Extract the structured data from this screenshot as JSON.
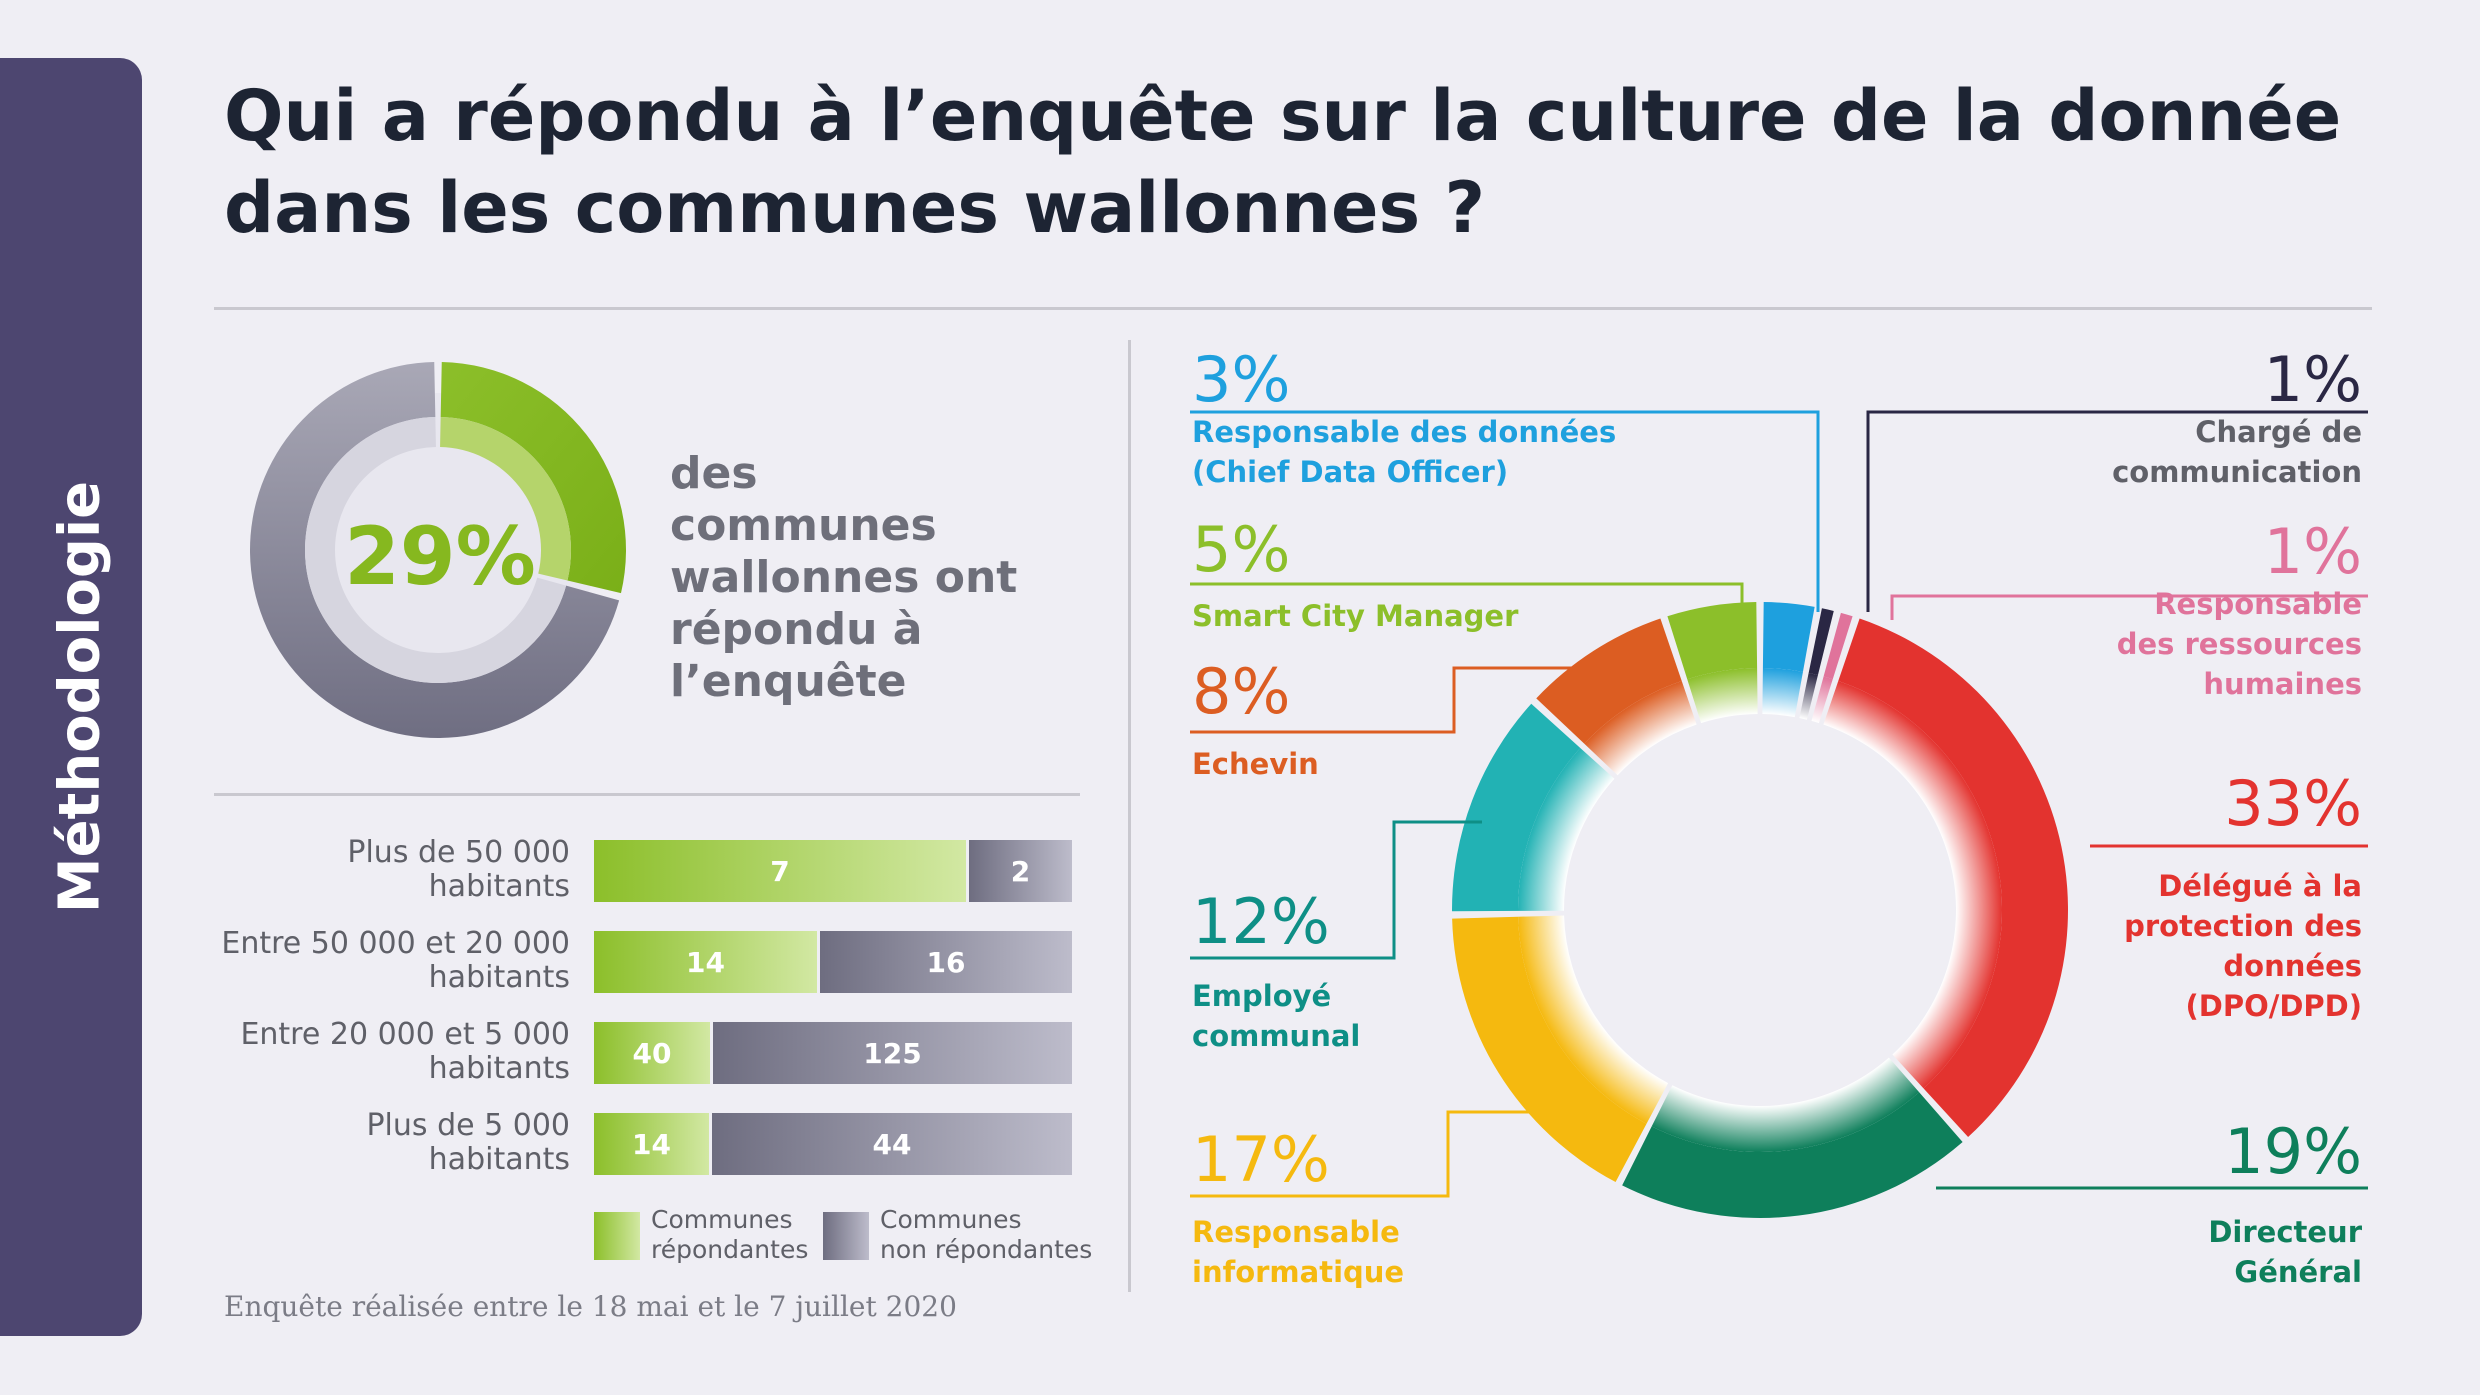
{
  "sidebar": {
    "label": "Méthodologie"
  },
  "title": {
    "line1": "Qui a répondu à l’enquête sur la culture de la donnée",
    "line2": "dans les communes wallonnes ?"
  },
  "response_rate": {
    "percent_label": "29%",
    "value": 0.29,
    "text": [
      "des communes",
      "wallonnes ont",
      "répondu à",
      "l’enquête"
    ]
  },
  "legend": {
    "responded": [
      "Communes",
      "répondantes"
    ],
    "not_responded": [
      "Communes",
      "non répondantes"
    ]
  },
  "footnote": "Enquête réalisée entre le 18 mai et le 7 juillet 2020",
  "colors": {
    "green": "#8cbf2a",
    "grey": "#7d7c8f",
    "title": "#1d2433",
    "sidebar": "#4d4670"
  },
  "chart_data": [
    {
      "type": "pie",
      "title": "",
      "labels": [
        "Communes wallonnes ayant répondu",
        "Autres communes"
      ],
      "values": [
        29,
        71
      ],
      "unit": "%"
    },
    {
      "type": "bar",
      "orientation": "horizontal",
      "stacked": true,
      "categories": [
        [
          "Plus de 50 000",
          "habitants"
        ],
        [
          "Entre 50 000 et 20 000",
          "habitants"
        ],
        [
          "Entre 20 000 et 5 000",
          "habitants"
        ],
        [
          "Plus de 5 000",
          "habitants"
        ]
      ],
      "series": [
        {
          "name": "Communes répondantes",
          "values": [
            7,
            14,
            40,
            14
          ],
          "color": "#8cbf2a"
        },
        {
          "name": "Communes non répondantes",
          "values": [
            2,
            16,
            125,
            44
          ],
          "color": "#7d7c8f"
        }
      ]
    },
    {
      "type": "pie",
      "donut": true,
      "slices": [
        {
          "pct": "3%",
          "value": 3,
          "label": [
            "Responsable des données",
            "(Chief Data Officer)"
          ],
          "color": "#1ea0de"
        },
        {
          "pct": "1%",
          "value": 1,
          "label": [
            "Chargé de",
            "communication"
          ],
          "color": "#2a2744"
        },
        {
          "pct": "1%",
          "value": 1,
          "label": [
            "Responsable",
            "des ressources",
            "humaines"
          ],
          "color": "#e0739b"
        },
        {
          "pct": "33%",
          "value": 33,
          "label": [
            "Délégué à la",
            "protection des",
            "données",
            "(DPO/DPD)"
          ],
          "color": "#e3332f"
        },
        {
          "pct": "19%",
          "value": 19,
          "label": [
            "Directeur",
            "Général"
          ],
          "color": "#0e7f5b"
        },
        {
          "pct": "17%",
          "value": 17,
          "label": [
            "Responsable",
            "informatique"
          ],
          "color": "#f5b90f"
        },
        {
          "pct": "12%",
          "value": 12,
          "label": [
            "Employé",
            "communal"
          ],
          "color": "#22b2b4"
        },
        {
          "pct": "8%",
          "value": 8,
          "label": [
            "Echevin"
          ],
          "color": "#dc5d22"
        },
        {
          "pct": "5%",
          "value": 5,
          "label": [
            "Smart City Manager"
          ],
          "color": "#8cbf2a"
        }
      ]
    }
  ]
}
